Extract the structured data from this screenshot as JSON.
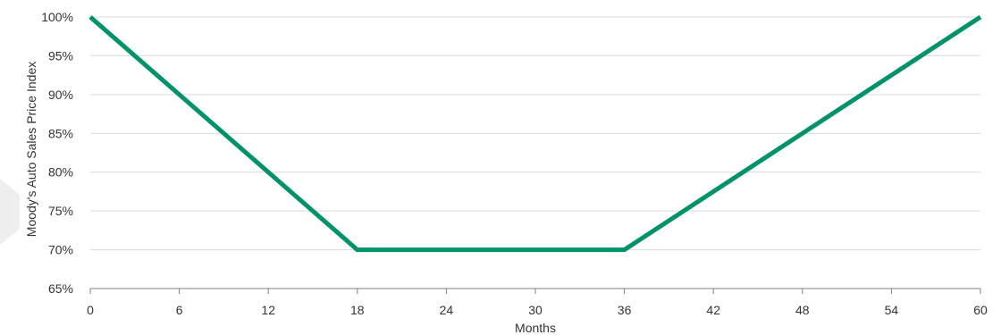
{
  "chart_data": {
    "type": "line",
    "title": "",
    "xlabel": "Months",
    "ylabel": "Moody's Auto Sales Price Index",
    "x": [
      0,
      18,
      36,
      60
    ],
    "series": [
      {
        "values": [
          100,
          70,
          70,
          100
        ],
        "color": "#00936a"
      }
    ],
    "xlim": [
      0,
      60
    ],
    "ylim": [
      65,
      100
    ],
    "xticks": [
      0,
      6,
      12,
      18,
      24,
      30,
      36,
      42,
      48,
      54,
      60
    ],
    "yticks": [
      65,
      70,
      75,
      80,
      85,
      90,
      95,
      100
    ],
    "ytick_labels": [
      "65%",
      "70%",
      "75%",
      "80%",
      "85%",
      "90%",
      "95%",
      "100%"
    ],
    "grid": "horizontal",
    "legend": "none"
  },
  "colors": {
    "line": "#00936a",
    "grid": "#d9d9d9",
    "axis": "#7f7f7f",
    "watermark": "#eeeeee"
  }
}
